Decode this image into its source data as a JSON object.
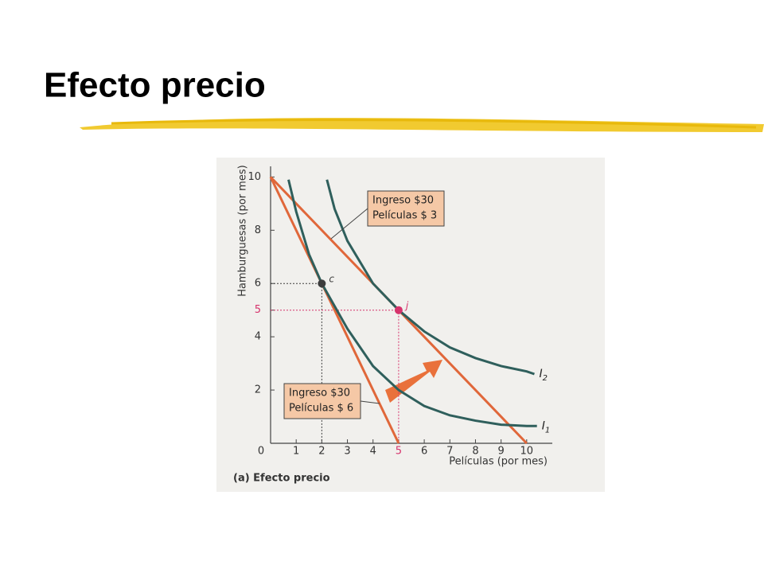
{
  "slide": {
    "title": "Efecto precio"
  },
  "chart_data": {
    "type": "line",
    "caption": "(a) Efecto precio",
    "x_label": "Películas (por mes)",
    "y_label": "Hamburguesas (por mes)",
    "xlim": [
      0,
      11
    ],
    "ylim": [
      0,
      10.4
    ],
    "xticks": [
      0,
      1,
      2,
      3,
      4,
      5,
      6,
      7,
      8,
      9,
      10
    ],
    "yticks": [
      2,
      4,
      5,
      6,
      8,
      10
    ],
    "series": [
      {
        "color": "#e0673a",
        "x": [
          0,
          5
        ],
        "values": [
          10,
          0
        ],
        "callout": [
          "Ingreso $30",
          "Películas $ 6"
        ]
      },
      {
        "color": "#e0673a",
        "x": [
          0,
          10
        ],
        "values": [
          10,
          0
        ],
        "callout": [
          "Ingreso $30",
          "Películas $ 3"
        ]
      },
      {
        "name": "I",
        "subscript": "1",
        "color": "#2f5f5c",
        "x": [
          0.7,
          1,
          1.5,
          2,
          3,
          4,
          5,
          6,
          7,
          8,
          9,
          10,
          10.4
        ],
        "values": [
          9.9,
          8.7,
          7.1,
          6,
          4.3,
          2.9,
          2.0,
          1.4,
          1.05,
          0.85,
          0.7,
          0.65,
          0.65
        ]
      },
      {
        "name": "I",
        "subscript": "2",
        "color": "#2f5f5c",
        "x": [
          2.2,
          2.5,
          3,
          4,
          5,
          6,
          7,
          8,
          9,
          10,
          10.3
        ],
        "values": [
          9.9,
          8.8,
          7.6,
          6.0,
          5.0,
          4.2,
          3.6,
          3.2,
          2.9,
          2.7,
          2.6
        ]
      }
    ],
    "points": [
      {
        "label": "c",
        "x": 2,
        "y": 6,
        "color": "#3d3d3d"
      },
      {
        "label": "j",
        "x": 5,
        "y": 5,
        "color": "#d6336c"
      }
    ]
  }
}
